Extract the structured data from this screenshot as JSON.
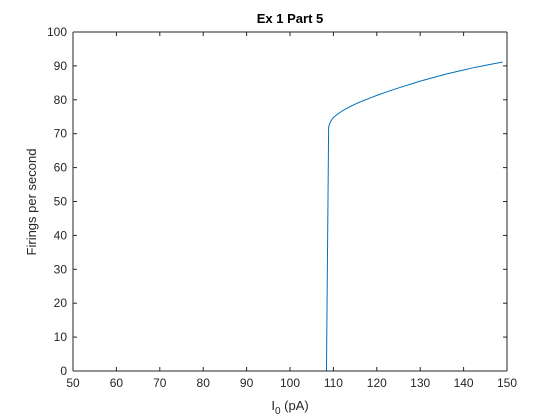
{
  "chart_data": {
    "type": "line",
    "title": "Ex 1 Part 5",
    "xlabel": {
      "main": "I",
      "subscript": "0",
      "suffix": " (pA)"
    },
    "ylabel": "Firings per second",
    "xlim": [
      50,
      150
    ],
    "ylim": [
      0,
      100
    ],
    "xticks": [
      50,
      60,
      70,
      80,
      90,
      100,
      110,
      120,
      130,
      140,
      150
    ],
    "yticks": [
      0,
      10,
      20,
      30,
      40,
      50,
      60,
      70,
      80,
      90,
      100
    ],
    "grid": false,
    "box": true,
    "line_color": "#0072BD",
    "series": [
      {
        "x": [
          50,
          60,
          70,
          80,
          90,
          100,
          108,
          108.4,
          108.9,
          109.3,
          110,
          111,
          112,
          113,
          114,
          115,
          116,
          117,
          118,
          119,
          120,
          122,
          124,
          126,
          128,
          130,
          132,
          134,
          136,
          138,
          140,
          142,
          144,
          146,
          148,
          149
        ],
        "y": [
          0,
          0,
          0,
          0,
          0,
          0,
          0,
          0,
          72,
          73.5,
          74.8,
          75.8,
          76.7,
          77.4,
          78.1,
          78.7,
          79.3,
          79.8,
          80.3,
          80.8,
          81.3,
          82.2,
          83.1,
          83.9,
          84.7,
          85.5,
          86.2,
          86.9,
          87.6,
          88.2,
          88.8,
          89.4,
          89.9,
          90.4,
          90.9,
          91.1
        ]
      }
    ]
  }
}
